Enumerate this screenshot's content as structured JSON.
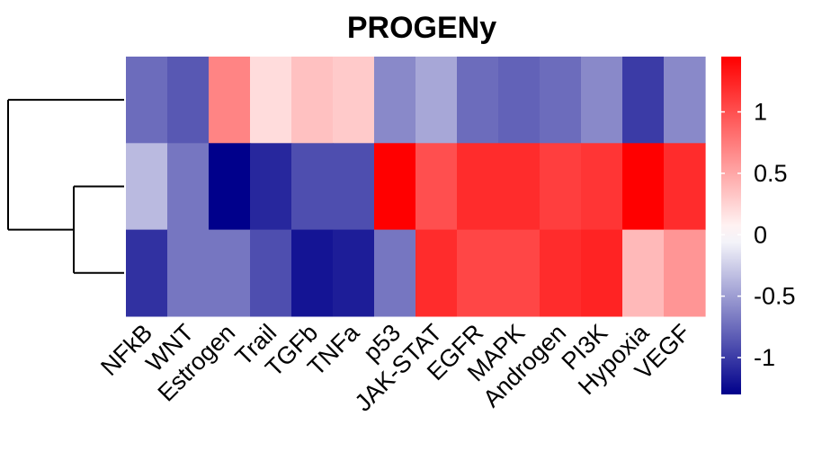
{
  "chart_data": {
    "type": "heatmap",
    "title": "PROGENy",
    "columns": [
      "NFkB",
      "WNT",
      "Estrogen",
      "Trail",
      "TGFb",
      "TNFa",
      "p53",
      "JAK-STAT",
      "EGFR",
      "MAPK",
      "Androgen",
      "PI3K",
      "Hypoxia",
      "VEGF"
    ],
    "rows": [
      {
        "values": [
          -0.75,
          -0.85,
          0.7,
          0.2,
          0.35,
          0.3,
          -0.6,
          -0.45,
          -0.75,
          -0.8,
          -0.75,
          -0.6,
          -1.0,
          -0.6
        ]
      },
      {
        "values": [
          -0.35,
          -0.7,
          -1.3,
          -1.1,
          -0.9,
          -0.9,
          1.45,
          1.0,
          1.2,
          1.2,
          1.1,
          1.15,
          1.45,
          1.2
        ]
      },
      {
        "values": [
          -1.05,
          -0.7,
          -0.7,
          -0.9,
          -1.2,
          -1.15,
          -0.7,
          1.2,
          1.05,
          1.05,
          1.2,
          1.25,
          0.4,
          0.6
        ]
      }
    ],
    "dendrogram": {
      "merges": [
        [
          2,
          3,
          0.45
        ],
        [
          1,
          "2+3",
          1.0
        ]
      ]
    },
    "colorbar": {
      "range": [
        -1.3,
        1.45
      ],
      "ticks": [
        1,
        0.5,
        0,
        -0.5,
        -1
      ],
      "tick_labels": [
        "1",
        "0.5",
        "0",
        "-0.5",
        "-1"
      ],
      "colors": {
        "low": "#00008B",
        "mid": "#FFFFFF",
        "high": "#FF0000"
      }
    }
  }
}
